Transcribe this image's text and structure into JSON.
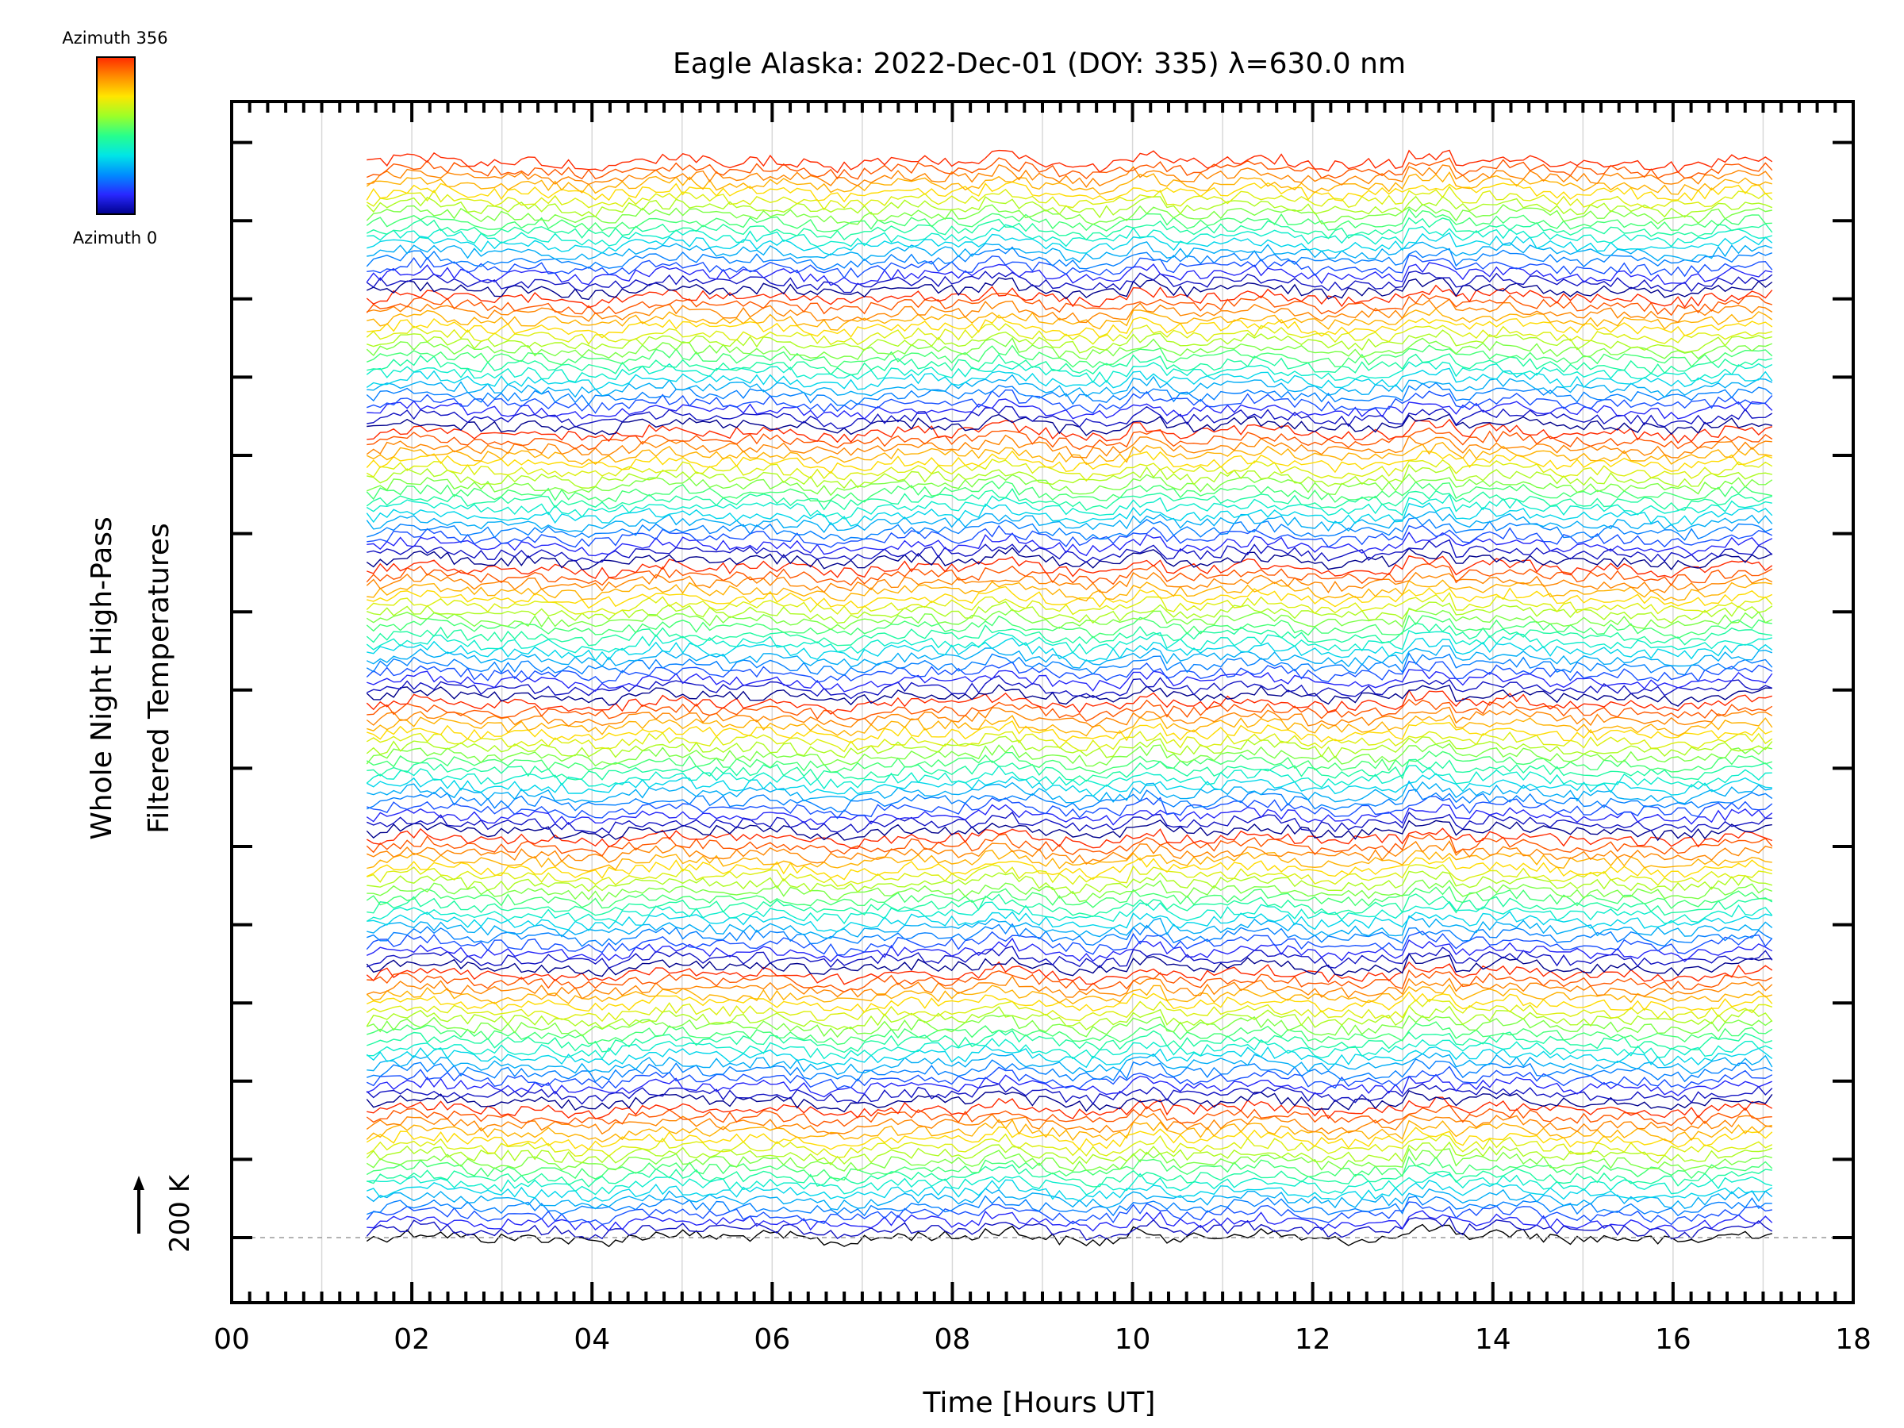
{
  "chart_data": {
    "type": "line",
    "title": "Eagle Alaska: 2022-Dec-01 (DOY: 335) λ=630.0 nm",
    "xlabel": "Time [Hours UT]",
    "ylabel_line1": "Whole Night High-Pass",
    "ylabel_line2": "Filtered Temperatures",
    "scale_label": "200 K",
    "xlim": [
      0,
      18
    ],
    "x_ticks": [
      "00",
      "02",
      "04",
      "06",
      "08",
      "10",
      "12",
      "14",
      "16",
      "18"
    ],
    "x_tick_values": [
      0,
      2,
      4,
      6,
      8,
      10,
      12,
      14,
      16,
      18
    ],
    "time_range": [
      1.5,
      17.1
    ],
    "grid": true,
    "colorbar": {
      "top_label": "Azimuth 356",
      "bottom_label": "Azimuth 0",
      "colors": [
        "#ff2a00",
        "#ff8c00",
        "#ffe600",
        "#9cff28",
        "#28ff8c",
        "#00e6e6",
        "#008cff",
        "#2828ff",
        "#00008c"
      ]
    },
    "azimuth_groups": 8,
    "series_per_group": 18,
    "azimuth_range": [
      0,
      356
    ]
  }
}
